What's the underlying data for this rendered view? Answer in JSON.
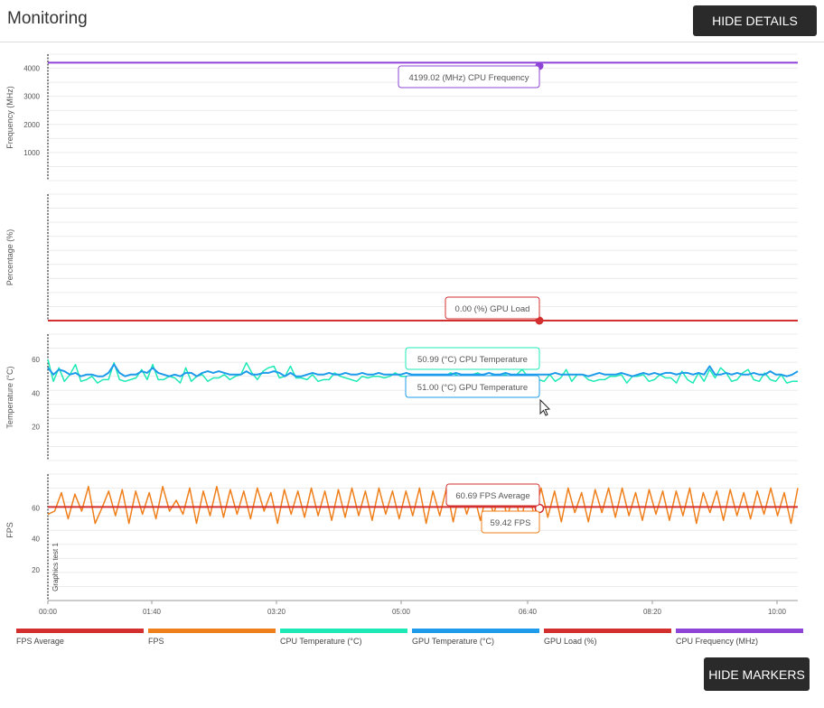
{
  "header": {
    "title": "Monitoring",
    "hide_details_label": "HIDE DETAILS"
  },
  "footer": {
    "hide_markers_label": "HIDE MARKERS"
  },
  "colors": {
    "fps_average": "#d32f2f",
    "fps": "#ef7f1a",
    "cpu_temperature": "#1de9b6",
    "gpu_temperature": "#1e9bea",
    "gpu_load": "#d32f2f",
    "cpu_frequency": "#8e44d6"
  },
  "legend": [
    {
      "label": "FPS Average",
      "color": "#d32f2f"
    },
    {
      "label": "FPS",
      "color": "#ef7f1a"
    },
    {
      "label": "CPU Temperature (°C)",
      "color": "#1de9b6"
    },
    {
      "label": "GPU Temperature (°C)",
      "color": "#1e9bea"
    },
    {
      "label": "GPU Load (%)",
      "color": "#d32f2f"
    },
    {
      "label": "CPU Frequency (MHz)",
      "color": "#8e44d6"
    }
  ],
  "x_axis": {
    "ticks": [
      "00:00",
      "01:40",
      "03:20",
      "05:00",
      "06:40",
      "08:20",
      "10:00"
    ]
  },
  "marker": {
    "label": "Graphics test 1"
  },
  "cursor_time": "06:40",
  "chart_data": [
    {
      "type": "line",
      "ylabel": "Frequency (MHz)",
      "ylim": [
        0,
        4500
      ],
      "yticks": [
        1000,
        2000,
        3000,
        4000
      ],
      "series": [
        {
          "name": "CPU Frequency (MHz)",
          "values": [
            4199.02,
            4199.02
          ]
        }
      ],
      "tooltips": [
        {
          "text": "4199.02 (MHz) CPU Frequency",
          "value": 4199.02
        }
      ]
    },
    {
      "type": "line",
      "ylabel": "Percentage (%)",
      "ylim": [
        0,
        100
      ],
      "yticks": [],
      "series": [
        {
          "name": "GPU Load (%)",
          "values": [
            0,
            0
          ]
        }
      ],
      "tooltips": [
        {
          "text": "0.00 (%) GPU Load",
          "value": 0
        }
      ]
    },
    {
      "type": "line",
      "ylabel": "Temperature (°C)",
      "ylim": [
        0,
        75
      ],
      "yticks": [
        20,
        40,
        60
      ],
      "series": [
        {
          "name": "CPU Temperature (°C)",
          "values": [
            60,
            47,
            55,
            47,
            51,
            57,
            47,
            48,
            50,
            46,
            48,
            48,
            58,
            48,
            47,
            48,
            49,
            54,
            48,
            57,
            48,
            48,
            50,
            49,
            46,
            55,
            47,
            50,
            51,
            47,
            49,
            49,
            51,
            48,
            50,
            51,
            58,
            52,
            48,
            53,
            55,
            56,
            49,
            50,
            56,
            49,
            49,
            48,
            51,
            47,
            48,
            48,
            52,
            50,
            49,
            48,
            47,
            50,
            49,
            50,
            50,
            49,
            50,
            52,
            50,
            50,
            49,
            51,
            50,
            49,
            50,
            51,
            50,
            52,
            51,
            49,
            50,
            51,
            52,
            50,
            50,
            51,
            50,
            51,
            49,
            51,
            54,
            50,
            49,
            48,
            47,
            51,
            47,
            49,
            54,
            47,
            51,
            51,
            48,
            47,
            48,
            48,
            50,
            50,
            51,
            46,
            50,
            50,
            51,
            47,
            48,
            51,
            49,
            49,
            46,
            53,
            48,
            46,
            52,
            47,
            54,
            49,
            55,
            52,
            47,
            48,
            52,
            54,
            48,
            47,
            52,
            48,
            47,
            51,
            46,
            47,
            47
          ]
        },
        {
          "name": "GPU Temperature (°C)",
          "values": [
            55,
            51,
            54,
            53,
            51,
            52,
            50,
            51,
            51,
            50,
            50,
            52,
            57,
            52,
            50,
            51,
            51,
            53,
            52,
            55,
            52,
            51,
            50,
            51,
            50,
            52,
            52,
            50,
            52,
            53,
            52,
            53,
            52,
            51,
            51,
            51,
            53,
            51,
            51,
            52,
            52,
            53,
            52,
            50,
            52,
            50,
            50,
            51,
            52,
            51,
            51,
            52,
            51,
            51,
            52,
            51,
            51,
            52,
            51,
            51,
            52,
            51,
            51,
            51,
            51,
            52,
            51,
            51,
            51,
            51,
            51,
            51,
            51,
            51,
            52,
            51,
            51,
            51,
            51,
            51,
            52,
            51,
            51,
            52,
            51,
            51,
            51,
            51,
            51,
            51,
            51,
            51,
            52,
            51,
            51,
            51,
            51,
            51,
            50,
            51,
            52,
            51,
            51,
            51,
            52,
            51,
            50,
            51,
            52,
            51,
            52,
            51,
            52,
            52,
            51,
            52,
            52,
            51,
            52,
            51,
            56,
            51,
            51,
            52,
            51,
            52,
            51,
            51,
            52,
            51,
            51,
            53,
            51,
            51,
            50,
            51,
            53
          ]
        }
      ],
      "tooltips": [
        {
          "text": "50.99 (°C) CPU Temperature",
          "value": 50.99
        },
        {
          "text": "51.00 (°C) GPU Temperature",
          "value": 51.0
        }
      ]
    },
    {
      "type": "line",
      "ylabel": "FPS",
      "ylim": [
        0,
        82
      ],
      "yticks": [
        20,
        40,
        60
      ],
      "series": [
        {
          "name": "FPS",
          "values": [
            56,
            58,
            70,
            53,
            69,
            58,
            74,
            50,
            60,
            71,
            55,
            72,
            50,
            71,
            56,
            70,
            53,
            74,
            58,
            65,
            56,
            73,
            50,
            71,
            55,
            74,
            54,
            72,
            56,
            71,
            53,
            73,
            58,
            70,
            50,
            72,
            56,
            71,
            54,
            73,
            55,
            71,
            52,
            72,
            54,
            73,
            55,
            71,
            52,
            73,
            56,
            71,
            53,
            71,
            55,
            73,
            50,
            71,
            55,
            73,
            51,
            72,
            56,
            70,
            52,
            70,
            56,
            73,
            54,
            71,
            51,
            72,
            55,
            73,
            54,
            71,
            51,
            73,
            57,
            70,
            51,
            72,
            57,
            73,
            54,
            73,
            55,
            70,
            52,
            72,
            56,
            71,
            52,
            71,
            55,
            73,
            50,
            70,
            57,
            71,
            52,
            72,
            55,
            70,
            53,
            71,
            56,
            73,
            55,
            70,
            50,
            73
          ]
        },
        {
          "name": "FPS Average",
          "values": [
            60.69,
            60.69
          ]
        }
      ],
      "tooltips": [
        {
          "text": "60.69 FPS Average",
          "value": 60.69
        },
        {
          "text": "59.42 FPS",
          "value": 59.42
        }
      ]
    }
  ]
}
